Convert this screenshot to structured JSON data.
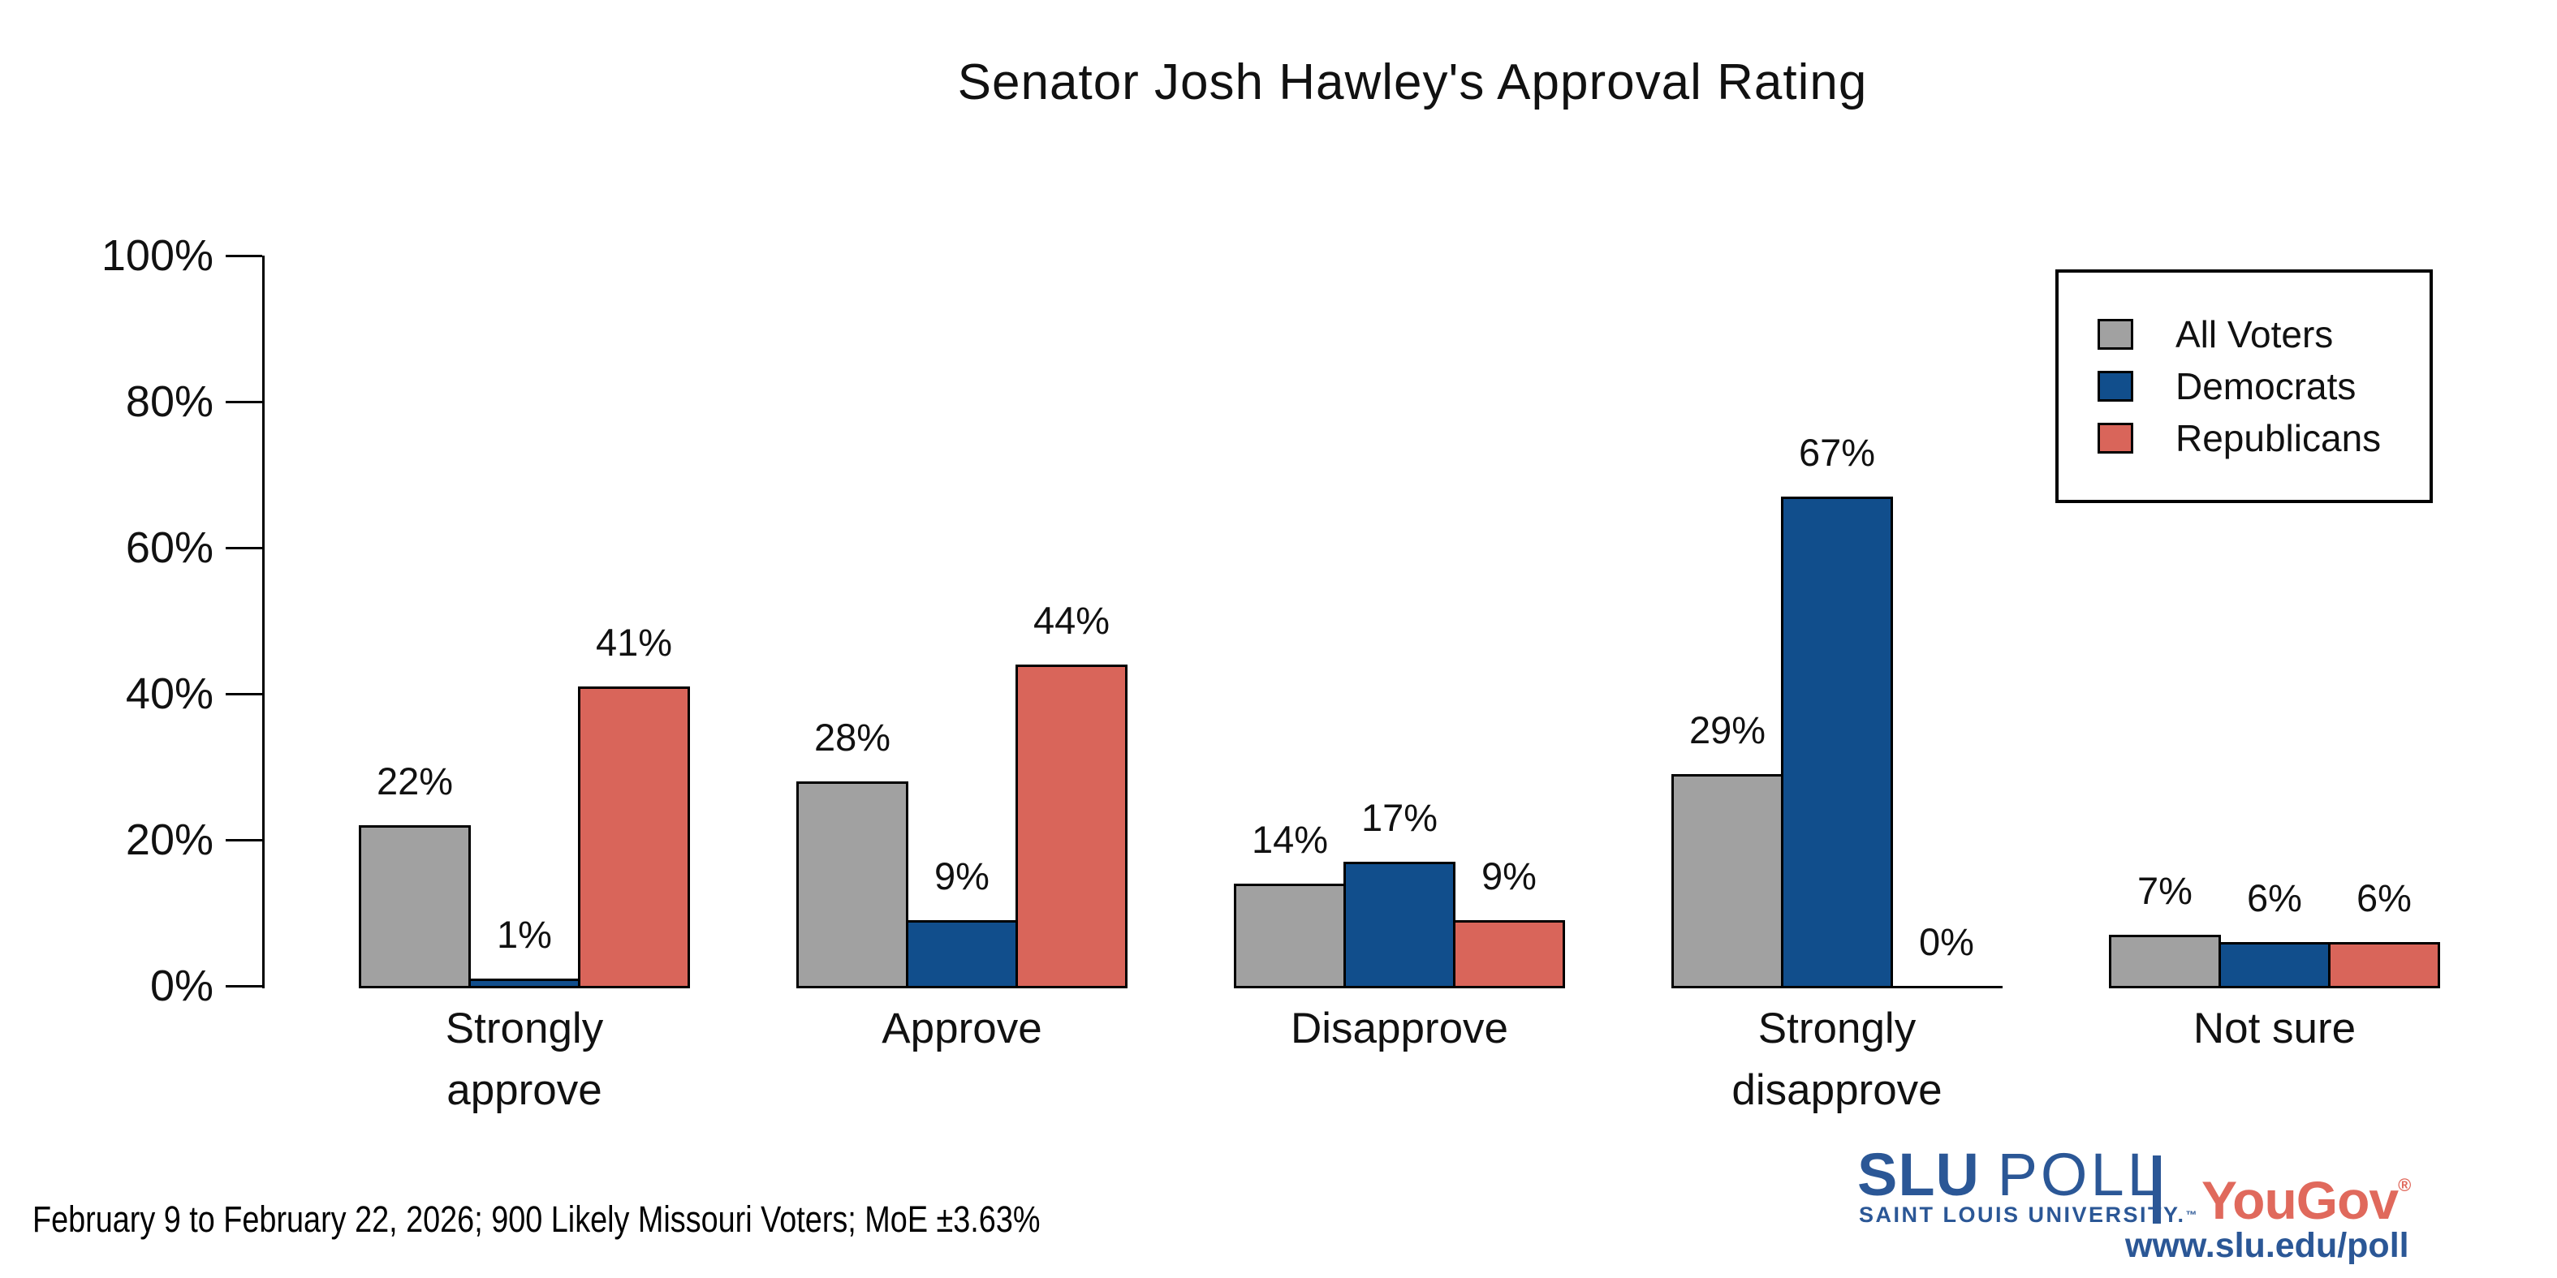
{
  "title": "Senator Josh Hawley's Approval Rating",
  "chart_data": {
    "type": "bar",
    "title": "Senator Josh Hawley's Approval Rating",
    "categories": [
      "Strongly approve",
      "Approve",
      "Disapprove",
      "Strongly disapprove",
      "Not sure"
    ],
    "category_lines": [
      [
        "Strongly",
        "approve"
      ],
      [
        "Approve"
      ],
      [
        "Disapprove"
      ],
      [
        "Strongly",
        "disapprove"
      ],
      [
        "Not sure"
      ]
    ],
    "series": [
      {
        "name": "All Voters",
        "color": "#a1a1a1",
        "values": [
          22,
          28,
          14,
          29,
          7
        ]
      },
      {
        "name": "Democrats",
        "color": "#114e8c",
        "values": [
          1,
          9,
          17,
          67,
          6
        ]
      },
      {
        "name": "Republicans",
        "color": "#d9655a",
        "values": [
          41,
          44,
          9,
          0,
          6
        ]
      }
    ],
    "value_labels": [
      [
        "22%",
        "28%",
        "14%",
        "29%",
        "7%"
      ],
      [
        "1%",
        "9%",
        "17%",
        "67%",
        "6%"
      ],
      [
        "41%",
        "44%",
        "9%",
        "0%",
        "6%"
      ]
    ],
    "xlabel": "",
    "ylabel": "",
    "ylim": [
      0,
      100
    ],
    "yticks": [
      0,
      20,
      40,
      60,
      80,
      100
    ],
    "ytick_labels": [
      "0%",
      "20%",
      "40%",
      "60%",
      "80%",
      "100%"
    ],
    "grid": false,
    "legend_position": "top-right",
    "bar_edge_color": "#000000"
  },
  "footnote": "February 9 to February 22, 2026; 900 Likely Missouri Voters; MoE ±3.63%",
  "branding": {
    "slu": "SLU",
    "poll": "POLL",
    "university": "SAINT LOUIS UNIVERSITY.",
    "trademark": "™",
    "yougov": "YouGov",
    "registered": "®",
    "url": "www.slu.edu/poll",
    "slu_blue": "#2b5796",
    "yougov_red": "#e0695c"
  }
}
